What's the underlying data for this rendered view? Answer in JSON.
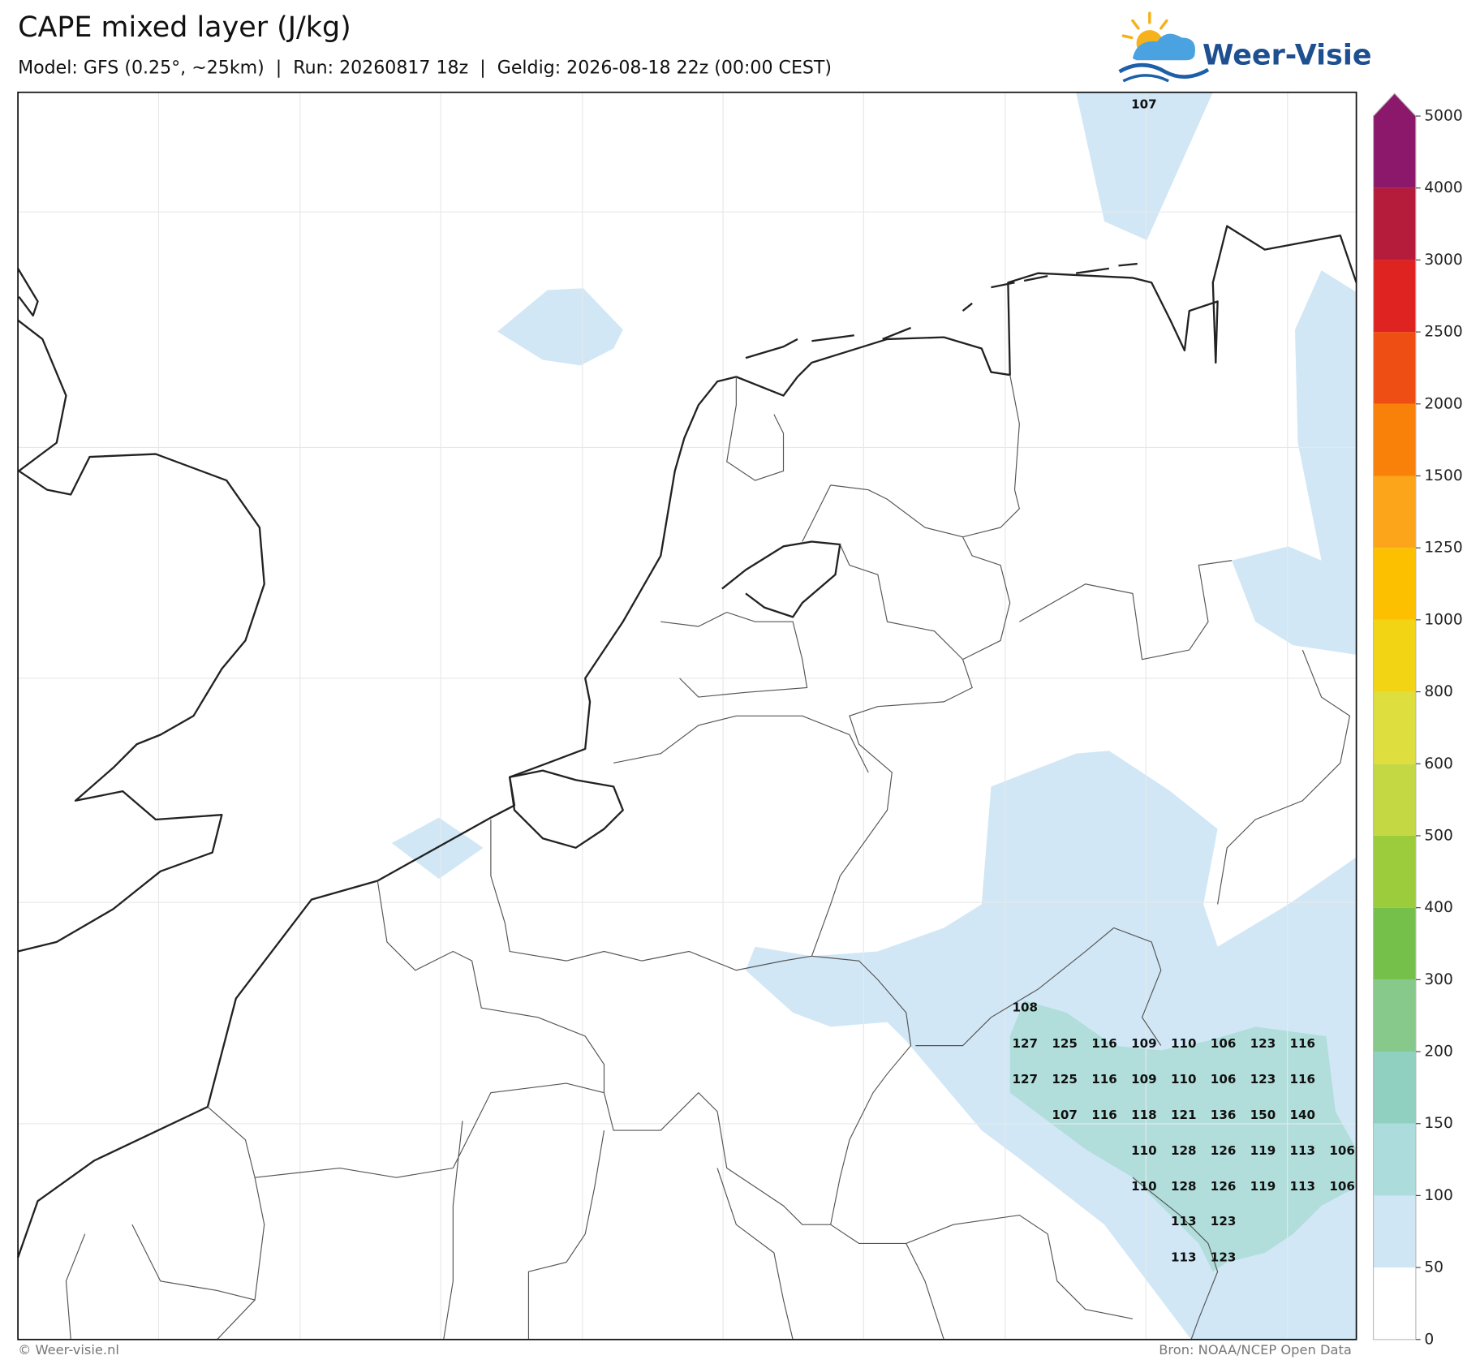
{
  "title": "CAPE mixed layer (J/kg)",
  "subtitle": "Model: GFS (0.25°, ~25km)  |  Run: 20260817 18z  |  Geldig: 2026-08-18 22z (00:00 CEST)",
  "logo": "Weer-Visie",
  "footer_left": "© Weer-visie.nl",
  "footer_right": "Bron: NOAA/NCEP Open Data",
  "colorbar": {
    "ticks": [
      0,
      50,
      100,
      150,
      200,
      300,
      400,
      500,
      600,
      800,
      1000,
      1250,
      1500,
      2000,
      2500,
      3000,
      4000,
      5000
    ],
    "colors": [
      "#ffffff",
      "#cfe6f5",
      "#acdcdc",
      "#8fd0c0",
      "#86c98a",
      "#74c04a",
      "#9ccc3c",
      "#c4d843",
      "#dede3e",
      "#f3d415",
      "#fcc000",
      "#fca51a",
      "#f98009",
      "#ee4e14",
      "#df2320",
      "#b51b3b",
      "#8b186b"
    ]
  },
  "point_values": [
    107,
    108,
    127,
    125,
    116,
    109,
    110,
    106,
    123,
    116,
    127,
    125,
    116,
    109,
    110,
    106,
    123,
    116,
    107,
    116,
    118,
    121,
    136,
    150,
    140,
    110,
    128,
    126,
    119,
    113,
    106,
    110,
    128,
    126,
    119,
    113,
    106,
    113,
    123,
    113,
    123
  ]
}
